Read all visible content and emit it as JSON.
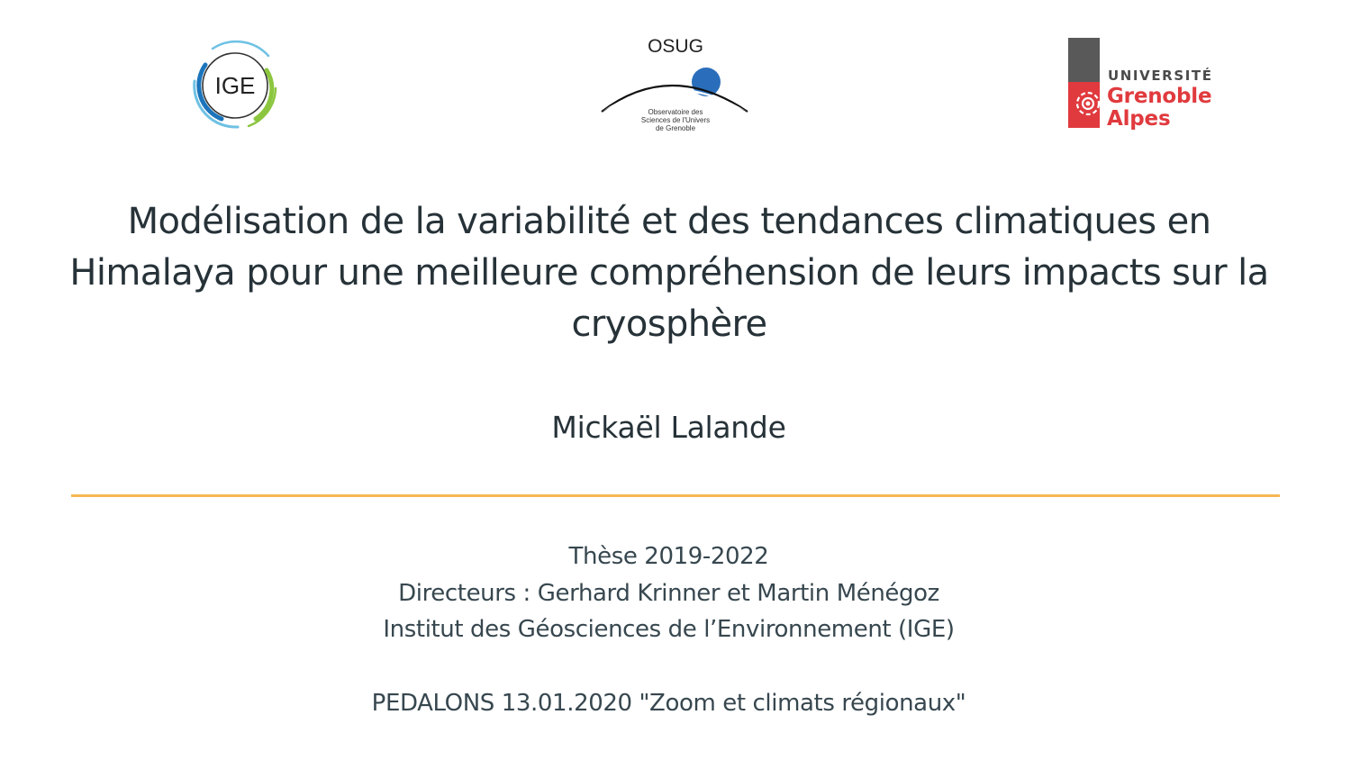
{
  "logos": {
    "ige": {
      "text": "IGE",
      "colors": {
        "blue": "#1c75bc",
        "green": "#8cc63f",
        "lightblue": "#6ec1e4"
      }
    },
    "osug": {
      "title": "OSUG",
      "subtitle_lines": [
        "Observatoire des",
        "Sciences de l'Univers",
        "de Grenoble"
      ],
      "dot_color": "#2a6ebb"
    },
    "uga": {
      "line1": "UNIVERSITÉ",
      "line2": "Grenoble",
      "line3": "Alpes",
      "red": "#e03a3e",
      "gray": "#595959"
    }
  },
  "slide": {
    "title": "Modélisation de la variabilité et des tendances climatiques en Himalaya pour une meilleure compréhension de leurs impacts sur la cryosphère",
    "author": "Mickaël Lalande",
    "accent_color": "#f5b041",
    "info": {
      "thesis": "Thèse 2019-2022",
      "directors": "Directeurs : Gerhard Krinner et Martin Ménégoz",
      "institute": "Institut des Géosciences de l’Environnement (IGE)",
      "event": "PEDALONS 13.01.2020 \"Zoom et climats régionaux\""
    }
  }
}
